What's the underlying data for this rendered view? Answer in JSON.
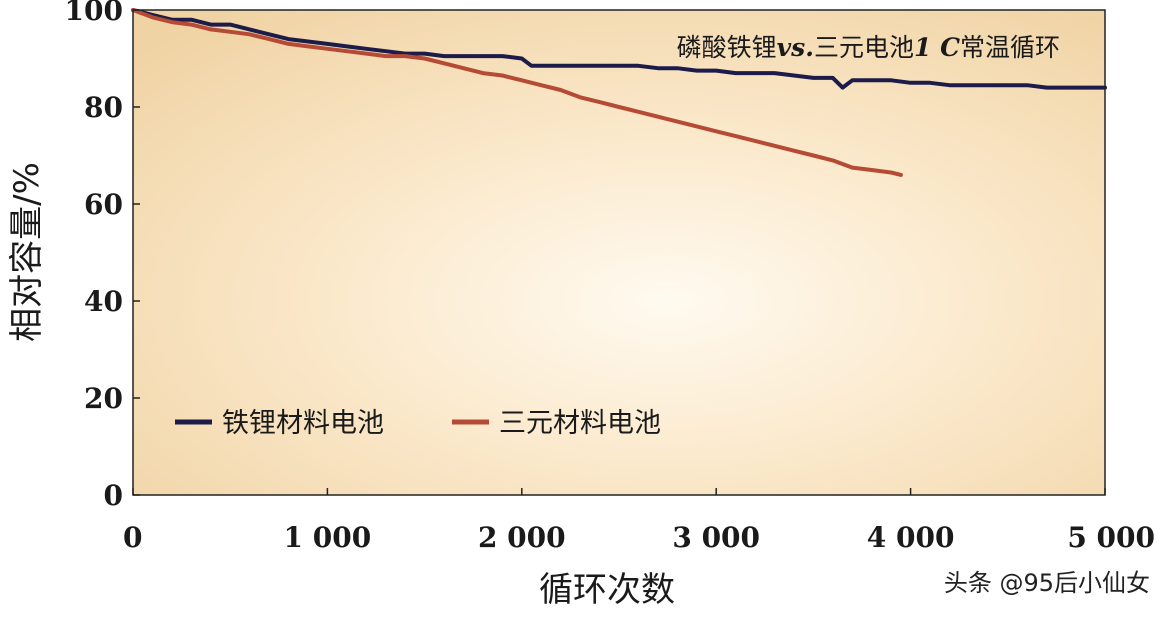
{
  "chart_data": {
    "type": "line",
    "title_parts": [
      "磷酸铁锂",
      "vs.",
      "三元电池",
      "1 C",
      "常温循环"
    ],
    "xlabel": "循环次数",
    "ylabel": "相对容量/%",
    "xlim": [
      0,
      5000
    ],
    "ylim": [
      0,
      100
    ],
    "xticks": [
      0,
      1000,
      2000,
      3000,
      4000,
      5000
    ],
    "xtick_labels": [
      "0",
      "1 000",
      "2 000",
      "3 000",
      "4 000",
      "5 000"
    ],
    "yticks": [
      0,
      20,
      40,
      60,
      80,
      100
    ],
    "ytick_labels": [
      "0",
      "20",
      "40",
      "60",
      "80",
      "100"
    ],
    "grid": false,
    "legend_position": "lower-left",
    "series": [
      {
        "name": "铁锂材料电池",
        "color": "#1c1b4a",
        "x": [
          0,
          100,
          200,
          300,
          400,
          500,
          600,
          700,
          800,
          900,
          1000,
          1100,
          1200,
          1300,
          1400,
          1500,
          1600,
          1700,
          1800,
          1900,
          2000,
          2050,
          2100,
          2200,
          2300,
          2400,
          2500,
          2600,
          2700,
          2800,
          2900,
          3000,
          3100,
          3200,
          3300,
          3400,
          3500,
          3600,
          3650,
          3700,
          3800,
          3900,
          4000,
          4100,
          4200,
          4300,
          4400,
          4500,
          4600,
          4700,
          4800,
          4900,
          5000
        ],
        "y": [
          100,
          99,
          98,
          98,
          97,
          97,
          96,
          95,
          94,
          93.5,
          93,
          92.5,
          92,
          91.5,
          91,
          91,
          90.5,
          90.5,
          90.5,
          90.5,
          90,
          88.5,
          88.5,
          88.5,
          88.5,
          88.5,
          88.5,
          88.5,
          88,
          88,
          87.5,
          87.5,
          87,
          87,
          87,
          86.5,
          86,
          86,
          84,
          85.5,
          85.5,
          85.5,
          85,
          85,
          84.5,
          84.5,
          84.5,
          84.5,
          84.5,
          84,
          84,
          84,
          84
        ]
      },
      {
        "name": "三元材料电池",
        "color": "#b54a35",
        "x": [
          0,
          100,
          200,
          300,
          400,
          500,
          600,
          700,
          800,
          900,
          1000,
          1100,
          1200,
          1300,
          1400,
          1500,
          1600,
          1700,
          1800,
          1900,
          2000,
          2100,
          2200,
          2300,
          2400,
          2500,
          2600,
          2700,
          2800,
          2900,
          3000,
          3100,
          3200,
          3300,
          3400,
          3500,
          3600,
          3700,
          3800,
          3900,
          3950
        ],
        "y": [
          100,
          98.5,
          97.5,
          97,
          96,
          95.5,
          95,
          94,
          93,
          92.5,
          92,
          91.5,
          91,
          90.5,
          90.5,
          90,
          89,
          88,
          87,
          86.5,
          85.5,
          84.5,
          83.5,
          82,
          81,
          80,
          79,
          78,
          77,
          76,
          75,
          74,
          73,
          72,
          71,
          70,
          69,
          67.5,
          67,
          66.5,
          66
        ]
      }
    ]
  },
  "watermark": "头条 @95后小仙女"
}
